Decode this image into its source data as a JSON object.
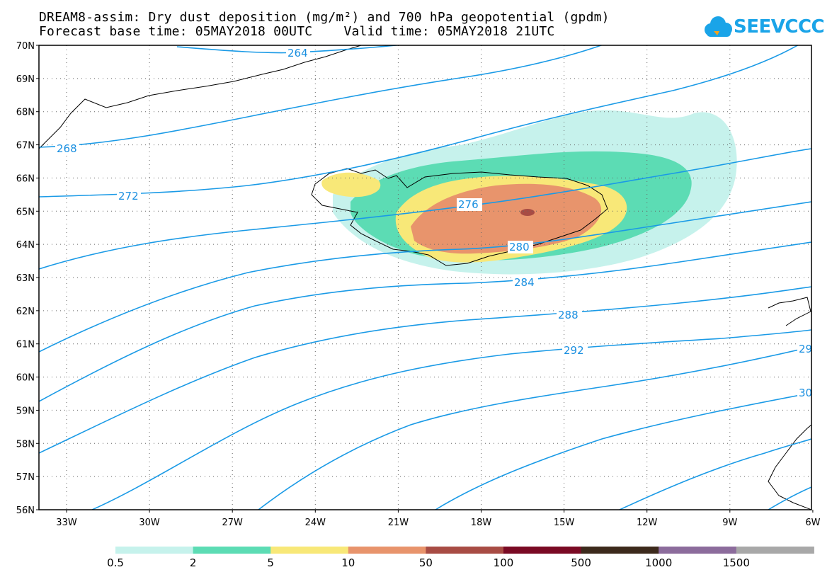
{
  "title": {
    "line1": "DREAM8-assim: Dry dust deposition (mg/m²) and 700 hPa geopotential (gpdm)",
    "line2": "Forecast base time: 05MAY2018 00UTC    Valid time: 05MAY2018 21UTC"
  },
  "logo": {
    "text": "SEEVCCC",
    "icon": "cloud-icon",
    "color": "#1aa4e8"
  },
  "map": {
    "lat_labels": [
      "70N",
      "69N",
      "68N",
      "67N",
      "66N",
      "65N",
      "64N",
      "63N",
      "62N",
      "61N",
      "60N",
      "59N",
      "58N",
      "57N",
      "56N"
    ],
    "lon_labels": [
      "33W",
      "30W",
      "27W",
      "24W",
      "21W",
      "18W",
      "15W",
      "12W",
      "9W",
      "6W"
    ],
    "contour_color": "#1a9ae6",
    "contour_labels": [
      "264",
      "268",
      "272",
      "276",
      "280",
      "284",
      "288",
      "292",
      "29",
      "30"
    ]
  },
  "colorbar": {
    "colors": [
      "#c6f2ec",
      "#5cdcb4",
      "#f8e878",
      "#e8946c",
      "#a84c44",
      "#7a0a24",
      "#3c2a1c",
      "#8c6c9c",
      "#a8a8a8"
    ],
    "labels": [
      "0.5",
      "2",
      "5",
      "10",
      "50",
      "100",
      "500",
      "1000",
      "1500"
    ]
  }
}
